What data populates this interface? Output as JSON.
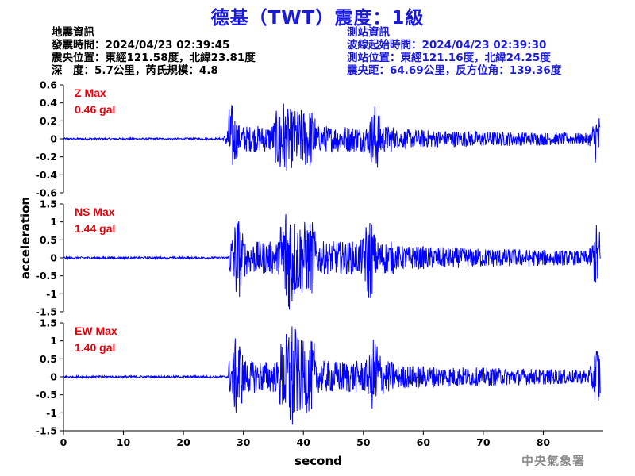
{
  "title": "德基（TWT）震度：1級",
  "quake_info": {
    "header": "地震資訊",
    "time": "發震時間：2024/04/23 02:39:45",
    "location": "震央位置：東經121.58度，北緯23.81度",
    "depth": "深　度：5.7公里，芮氏規模：4.8"
  },
  "station_info": {
    "header": "測站資訊",
    "wave_start": "波線起始時間：2024/04/23 02:39:30",
    "location": "測站位置：東經121.16度，北緯24.25度",
    "distance": "震央距：64.69公里，反方位角：139.36度"
  },
  "watermark": "中央氣象署",
  "colors": {
    "trace": "#0000ff",
    "max_label": "#e8000b",
    "title": "#1a1adf"
  },
  "chart_data": [
    {
      "type": "line",
      "component": "Z",
      "max_label": "Z Max",
      "max_value_label": "0.46 gal",
      "peak": 0.46,
      "ylim": [
        -0.6,
        0.6
      ],
      "yticks": [
        -0.6,
        -0.4,
        -0.2,
        0,
        0.2,
        0.4,
        0.6
      ],
      "ytick_labels": [
        "-0.6",
        "-0.4",
        "-0.2",
        "0",
        "0.2",
        "0.4",
        "0.6"
      ],
      "envelope": {
        "pre_event_amplitude": 0.01,
        "p_onset_s": 27.5,
        "s_onset_s": 36,
        "burst_times_s": [
          28,
          36,
          52,
          89
        ]
      }
    },
    {
      "type": "line",
      "component": "NS",
      "max_label": "NS Max",
      "max_value_label": "1.44 gal",
      "peak": 1.44,
      "ylim": [
        -1.5,
        1.5
      ],
      "yticks": [
        -1.5,
        -1,
        -0.5,
        0,
        0.5,
        1,
        1.5
      ],
      "ytick_labels": [
        "-1.5",
        "-1",
        "-0.5",
        "0",
        "0.5",
        "1",
        "1.5"
      ],
      "envelope": {
        "pre_event_amplitude": 0.03,
        "p_onset_s": 27.5,
        "s_onset_s": 36,
        "burst_times_s": [
          29,
          37.5,
          51,
          89
        ]
      }
    },
    {
      "type": "line",
      "component": "EW",
      "max_label": "EW Max",
      "max_value_label": "1.40 gal",
      "peak": 1.4,
      "ylim": [
        -1.5,
        1.5
      ],
      "yticks": [
        -1.5,
        -1,
        -0.5,
        0,
        0.5,
        1,
        1.5
      ],
      "ytick_labels": [
        "-1.5",
        "-1",
        "-0.5",
        "0",
        "0.5",
        "1",
        "1.5"
      ],
      "envelope": {
        "pre_event_amplitude": 0.03,
        "p_onset_s": 27.5,
        "s_onset_s": 36,
        "burst_times_s": [
          29,
          38,
          52,
          89
        ]
      }
    }
  ],
  "x_axis": {
    "label": "second",
    "xlim": [
      0,
      90
    ],
    "ticks": [
      0,
      10,
      20,
      30,
      40,
      50,
      60,
      70,
      80
    ],
    "tick_labels": [
      "0",
      "10",
      "20",
      "30",
      "40",
      "50",
      "60",
      "70",
      "80"
    ]
  },
  "y_axis_label": "acceleration"
}
